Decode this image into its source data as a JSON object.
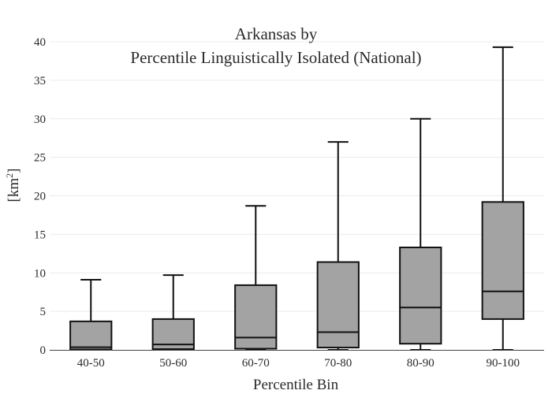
{
  "chart_data": {
    "type": "box",
    "title_lines": [
      "Arkansas  by",
      "Percentile Linguistically Isolated (National)"
    ],
    "xlabel": "Percentile Bin",
    "ylabel_base": "[km",
    "ylabel_sup": "2",
    "ylabel_close": "]",
    "ylim": [
      0,
      40
    ],
    "y_ticks": [
      0,
      5,
      10,
      15,
      20,
      25,
      30,
      35,
      40
    ],
    "grid": true,
    "categories": [
      "40-50",
      "50-60",
      "60-70",
      "70-80",
      "80-90",
      "90-100"
    ],
    "boxes": [
      {
        "label": "40-50",
        "min": 0,
        "q1": 0.05,
        "median": 0.35,
        "q3": 3.7,
        "max": 9.1
      },
      {
        "label": "50-60",
        "min": 0,
        "q1": 0.1,
        "median": 0.7,
        "q3": 4.0,
        "max": 9.7
      },
      {
        "label": "60-70",
        "min": 0,
        "q1": 0.15,
        "median": 1.6,
        "q3": 8.4,
        "max": 18.7
      },
      {
        "label": "70-80",
        "min": 0,
        "q1": 0.3,
        "median": 2.3,
        "q3": 11.4,
        "max": 27.0
      },
      {
        "label": "80-90",
        "min": 0,
        "q1": 0.8,
        "median": 5.5,
        "q3": 13.3,
        "max": 30.0
      },
      {
        "label": "90-100",
        "min": 0,
        "q1": 4.0,
        "median": 7.6,
        "q3": 19.2,
        "max": 39.3
      }
    ],
    "colors": {
      "box_fill": "#a3a3a3",
      "line": "#111111",
      "grid": "#ececec",
      "axis": "#444444"
    }
  }
}
